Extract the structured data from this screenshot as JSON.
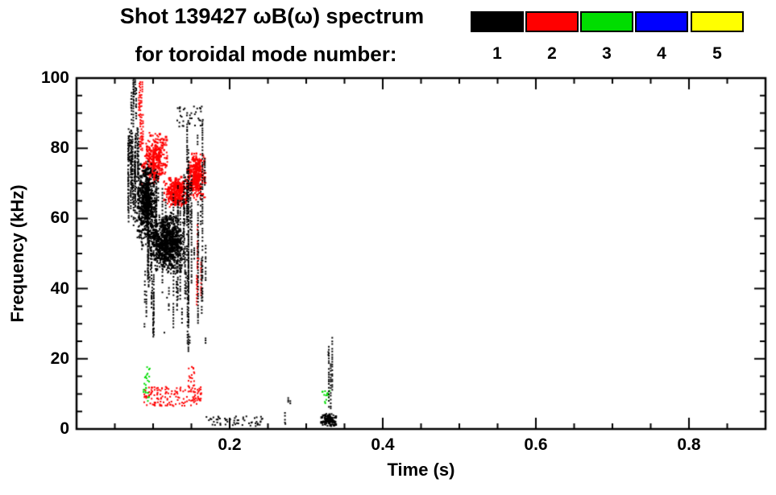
{
  "title": {
    "line1": "Shot 139427 ωB(ω) spectrum",
    "line2": "for toroidal mode number:"
  },
  "legend": {
    "entries": [
      {
        "label": "1",
        "color": "#000000"
      },
      {
        "label": "2",
        "color": "#ff0000"
      },
      {
        "label": "3",
        "color": "#00dd00"
      },
      {
        "label": "4",
        "color": "#0000ff"
      },
      {
        "label": "5",
        "color": "#ffff00"
      }
    ]
  },
  "chart_data": {
    "type": "scatter",
    "title": "Shot 139427 ωB(ω) spectrum for toroidal mode number: 1 2 3 4 5",
    "xlabel": "Time (s)",
    "ylabel": "Frequency (kHz)",
    "xlim": [
      0,
      0.9
    ],
    "ylim": [
      0,
      100
    ],
    "grid": false,
    "legend_position": "top-right",
    "x_major_ticks": [
      {
        "value": 0.2,
        "label": "0.2"
      },
      {
        "value": 0.4,
        "label": "0.4"
      },
      {
        "value": 0.6,
        "label": "0.6"
      },
      {
        "value": 0.8,
        "label": "0.8"
      }
    ],
    "y_major_ticks": [
      {
        "value": 0,
        "label": "0"
      },
      {
        "value": 20,
        "label": "20"
      },
      {
        "value": 40,
        "label": "40"
      },
      {
        "value": 60,
        "label": "60"
      },
      {
        "value": 80,
        "label": "80"
      },
      {
        "value": 100,
        "label": "100"
      }
    ],
    "x_minor_step": 0.05,
    "y_minor_step": 5,
    "series": [
      {
        "name": "n=1",
        "mode_number": 1,
        "color": "#000000",
        "clusters": [
          {
            "style": "streaks",
            "t": [
              0.067,
              0.082
            ],
            "f": [
              58,
              86
            ],
            "n": 240
          },
          {
            "style": "streaks",
            "t": [
              0.071,
              0.079
            ],
            "f": [
              84,
              101
            ],
            "n": 70
          },
          {
            "style": "dense",
            "t": [
              0.077,
              0.106
            ],
            "f": [
              52,
              77
            ],
            "n": 650
          },
          {
            "style": "dense",
            "t": [
              0.094,
              0.142
            ],
            "f": [
              44,
              62
            ],
            "n": 800
          },
          {
            "style": "streaks",
            "t": [
              0.08,
              0.145
            ],
            "f": [
              34,
              74
            ],
            "n": 280
          },
          {
            "style": "streaks",
            "t": [
              0.088,
              0.142
            ],
            "f": [
              26,
              46
            ],
            "n": 180
          },
          {
            "style": "streaks",
            "t": [
              0.143,
              0.169
            ],
            "f": [
              20,
              90
            ],
            "n": 170
          },
          {
            "style": "sparse",
            "t": [
              0.131,
              0.165
            ],
            "f": [
              86,
              92
            ],
            "n": 40
          },
          {
            "style": "sparse",
            "t": [
              0.168,
              0.245
            ],
            "f": [
              0.8,
              3.6
            ],
            "n": 55
          },
          {
            "style": "streaks",
            "t": [
              0.272,
              0.291
            ],
            "f": [
              1,
              9.5
            ],
            "n": 36
          },
          {
            "style": "dense",
            "t": [
              0.318,
              0.342
            ],
            "f": [
              0.5,
              4.5
            ],
            "n": 110
          },
          {
            "style": "streaks",
            "t": [
              0.324,
              0.335
            ],
            "f": [
              4,
              33.5
            ],
            "n": 40
          }
        ]
      },
      {
        "name": "n=2",
        "mode_number": 2,
        "color": "#ff0000",
        "clusters": [
          {
            "style": "streaks",
            "t": [
              0.081,
              0.087
            ],
            "f": [
              78,
              101
            ],
            "n": 80
          },
          {
            "style": "dense",
            "t": [
              0.084,
              0.119
            ],
            "f": [
              69,
              85
            ],
            "n": 320
          },
          {
            "style": "dense",
            "t": [
              0.112,
              0.149
            ],
            "f": [
              63,
              72
            ],
            "n": 320
          },
          {
            "style": "dense",
            "t": [
              0.144,
              0.169
            ],
            "f": [
              65,
              79
            ],
            "n": 330
          },
          {
            "style": "streaks",
            "t": [
              0.153,
              0.164
            ],
            "f": [
              34,
              62
            ],
            "n": 40
          },
          {
            "style": "sparse",
            "t": [
              0.088,
              0.163
            ],
            "f": [
              6.5,
              12
            ],
            "n": 150
          },
          {
            "style": "sparse",
            "t": [
              0.146,
              0.154
            ],
            "f": [
              12,
              19
            ],
            "n": 18
          }
        ]
      },
      {
        "name": "n=3",
        "mode_number": 3,
        "color": "#00dd00",
        "clusters": [
          {
            "style": "sparse",
            "t": [
              0.087,
              0.096
            ],
            "f": [
              7,
              18
            ],
            "n": 26
          },
          {
            "style": "sparse",
            "t": [
              0.321,
              0.332
            ],
            "f": [
              7,
              11
            ],
            "n": 14
          }
        ]
      },
      {
        "name": "n=4",
        "mode_number": 4,
        "color": "#0000ff",
        "clusters": []
      },
      {
        "name": "n=5",
        "mode_number": 5,
        "color": "#ffff00",
        "clusters": []
      }
    ]
  }
}
